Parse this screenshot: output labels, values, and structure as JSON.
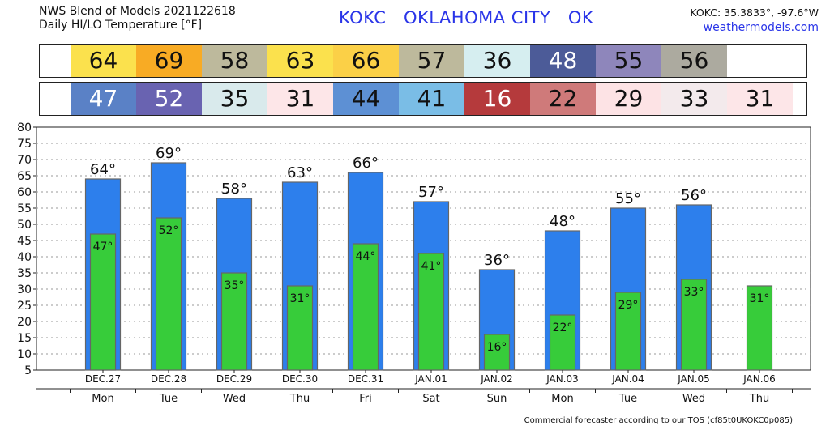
{
  "header": {
    "line1": "NWS Blend of Models 2021122618",
    "line2": "Daily HI/LO Temperature [°F]",
    "station_title": "KOKC   OKLAHOMA CITY   OK",
    "coords": "KOKC: 35.3833°, -97.6°W",
    "website": "weathermodels.com"
  },
  "hi_strip": [
    {
      "value": "64",
      "color": "#fbe14d"
    },
    {
      "value": "69",
      "color": "#f8ab24"
    },
    {
      "value": "58",
      "color": "#bdb99c"
    },
    {
      "value": "63",
      "color": "#fbe14d"
    },
    {
      "value": "66",
      "color": "#fbd047"
    },
    {
      "value": "57",
      "color": "#bdb99c"
    },
    {
      "value": "36",
      "color": "#d6eef0"
    },
    {
      "value": "48",
      "color": "#4c5b98",
      "text_color": "#ffffff"
    },
    {
      "value": "55",
      "color": "#8e86bb"
    },
    {
      "value": "56",
      "color": "#acaa9f"
    }
  ],
  "lo_strip": [
    {
      "value": "47",
      "color": "#5a81c6",
      "text_color": "#ffffff"
    },
    {
      "value": "52",
      "color": "#6963b1",
      "text_color": "#ffffff"
    },
    {
      "value": "35",
      "color": "#d9eaec"
    },
    {
      "value": "31",
      "color": "#fde6e8"
    },
    {
      "value": "44",
      "color": "#5d90d4"
    },
    {
      "value": "41",
      "color": "#7abde6"
    },
    {
      "value": "16",
      "color": "#b53a3c",
      "text_color": "#ffffff"
    },
    {
      "value": "22",
      "color": "#cf7a7a"
    },
    {
      "value": "29",
      "color": "#fde3e5"
    },
    {
      "value": "33",
      "color": "#f3eaec"
    },
    {
      "value": "31",
      "color": "#fde6e8"
    }
  ],
  "colors": {
    "hi_bar": "#2d7fec",
    "lo_bar": "#37cc3a",
    "bar_edge": "#666666",
    "grid": "#9a9a9a"
  },
  "chart_data": {
    "type": "bar",
    "title": "Daily HI/LO Temperature [°F]",
    "xlabel": "",
    "ylabel": "",
    "ylim": [
      5,
      80
    ],
    "yticks": [
      5,
      10,
      15,
      20,
      25,
      30,
      35,
      40,
      45,
      50,
      55,
      60,
      65,
      70,
      75,
      80
    ],
    "grid": true,
    "categories": [
      "DEC.27",
      "DEC.28",
      "DEC.29",
      "DEC.30",
      "DEC.31",
      "JAN.01",
      "JAN.02",
      "JAN.03",
      "JAN.04",
      "JAN.05",
      "JAN.06"
    ],
    "days": [
      "Mon",
      "Tue",
      "Wed",
      "Thu",
      "Fri",
      "Sat",
      "Sun",
      "Mon",
      "Tue",
      "Wed",
      "Thu"
    ],
    "series": [
      {
        "name": "HI",
        "values": [
          64,
          69,
          58,
          63,
          66,
          57,
          36,
          48,
          55,
          56,
          null
        ]
      },
      {
        "name": "LO",
        "values": [
          47,
          52,
          35,
          31,
          44,
          41,
          16,
          22,
          29,
          33,
          31
        ]
      }
    ]
  },
  "footer": "Commercial forecaster according to our TOS (cf85t0UKOKC0p085)"
}
